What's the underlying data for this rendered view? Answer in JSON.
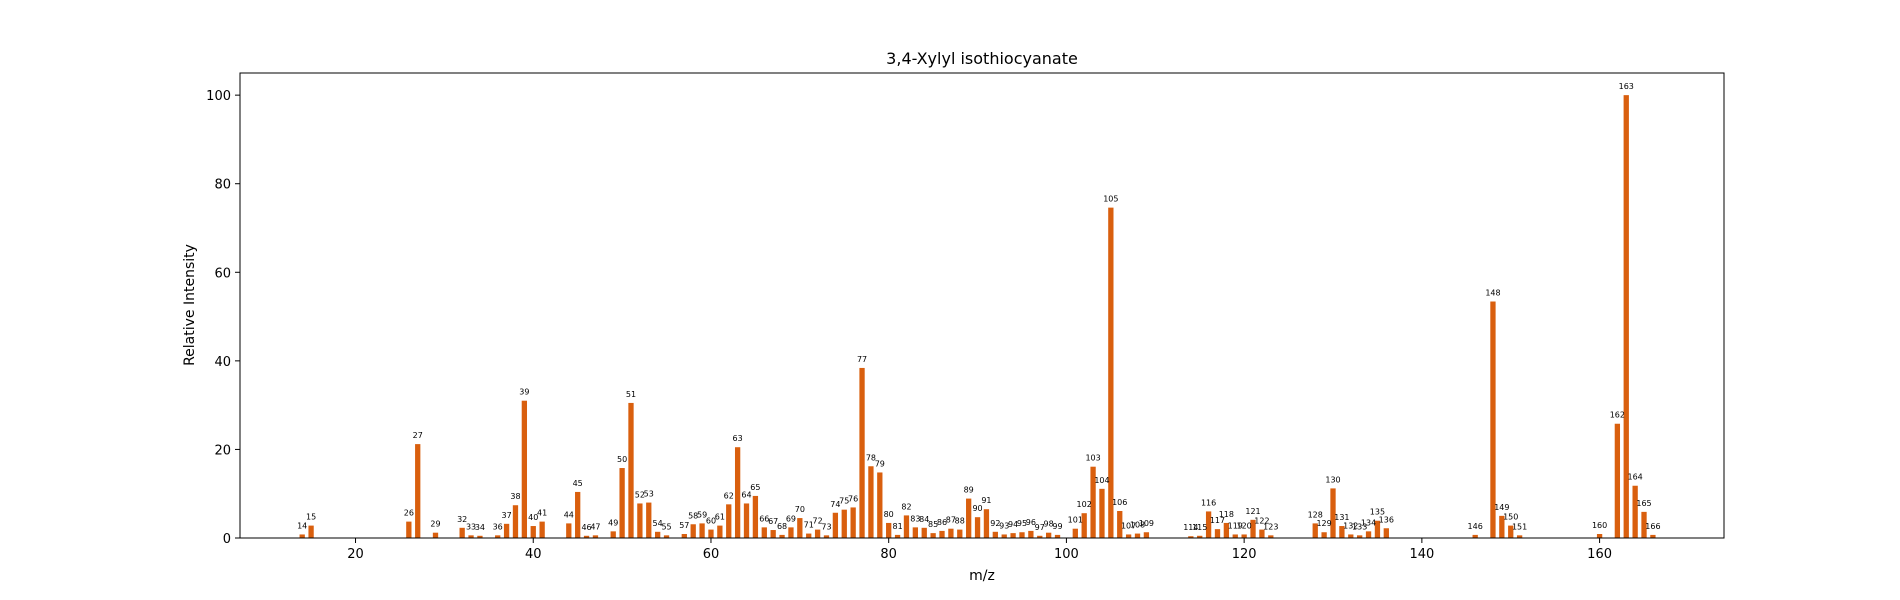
{
  "chart_data": {
    "type": "bar",
    "title": "3,4-Xylyl isothiocyanate",
    "xlabel": "m/z",
    "ylabel": "Relative Intensity",
    "xlim": [
      7,
      174
    ],
    "ylim": [
      0,
      105
    ],
    "x_ticks": [
      20,
      40,
      60,
      80,
      100,
      120,
      140,
      160
    ],
    "y_ticks": [
      0,
      20,
      40,
      60,
      80,
      100
    ],
    "bar_color": "#d95f0e",
    "grid": false,
    "x": [
      14,
      15,
      26,
      27,
      29,
      32,
      33,
      34,
      36,
      37,
      38,
      39,
      40,
      41,
      44,
      45,
      46,
      47,
      49,
      50,
      51,
      52,
      53,
      54,
      55,
      57,
      58,
      59,
      60,
      61,
      62,
      63,
      64,
      65,
      66,
      67,
      68,
      69,
      70,
      71,
      72,
      73,
      74,
      75,
      76,
      77,
      78,
      79,
      80,
      81,
      82,
      83,
      84,
      85,
      86,
      87,
      88,
      89,
      90,
      91,
      92,
      93,
      94,
      95,
      96,
      97,
      98,
      99,
      101,
      102,
      103,
      104,
      105,
      106,
      107,
      108,
      109,
      114,
      115,
      116,
      117,
      118,
      119,
      120,
      121,
      122,
      123,
      128,
      129,
      130,
      131,
      132,
      133,
      134,
      135,
      136,
      146,
      148,
      149,
      150,
      151,
      160,
      162,
      163,
      164,
      165,
      166
    ],
    "values": [
      0.8,
      2.8,
      3.7,
      21.2,
      1.2,
      2.3,
      0.6,
      0.5,
      0.6,
      3.2,
      7.4,
      31.0,
      2.7,
      3.7,
      3.3,
      10.4,
      0.5,
      0.6,
      1.5,
      15.8,
      30.5,
      7.8,
      8.0,
      1.4,
      0.6,
      0.9,
      3.1,
      3.3,
      1.9,
      2.8,
      7.6,
      20.5,
      7.8,
      9.5,
      2.4,
      1.8,
      0.7,
      2.4,
      4.5,
      1.0,
      1.9,
      0.6,
      5.7,
      6.4,
      6.9,
      38.4,
      16.2,
      14.8,
      3.4,
      0.7,
      5.1,
      2.4,
      2.3,
      1.1,
      1.6,
      2.1,
      1.9,
      8.9,
      4.7,
      6.5,
      1.4,
      0.8,
      1.1,
      1.3,
      1.6,
      0.5,
      1.2,
      0.7,
      2.1,
      5.6,
      16.1,
      11.1,
      74.6,
      6.1,
      0.8,
      1.0,
      1.3,
      0.4,
      0.5,
      6.0,
      2.0,
      3.4,
      0.8,
      0.8,
      4.1,
      1.9,
      0.6,
      3.3,
      1.3,
      11.2,
      2.7,
      0.8,
      0.6,
      1.5,
      3.9,
      2.2,
      0.7,
      53.4,
      5.0,
      2.8,
      0.6,
      0.9,
      25.8,
      100.0,
      11.8,
      5.9,
      0.7
    ],
    "labels": [
      "14",
      "15",
      "26",
      "27",
      "29",
      "32",
      "33",
      "34",
      "36",
      "37",
      "38",
      "39",
      "40",
      "41",
      "44",
      "45",
      "46",
      "47",
      "49",
      "50",
      "51",
      "52",
      "53",
      "54",
      "55",
      "57",
      "58",
      "59",
      "60",
      "61",
      "62",
      "63",
      "64",
      "65",
      "66",
      "67",
      "68",
      "69",
      "70",
      "71",
      "72",
      "73",
      "74",
      "75",
      "76",
      "77",
      "78",
      "79",
      "80",
      "81",
      "82",
      "83",
      "84",
      "85",
      "86",
      "87",
      "88",
      "89",
      "90",
      "91",
      "92",
      "93",
      "94",
      "95",
      "96",
      "97",
      "98",
      "99",
      "101",
      "102",
      "103",
      "104",
      "105",
      "106",
      "107",
      "108",
      "109",
      "114",
      "115",
      "116",
      "117",
      "118",
      "119",
      "120",
      "121",
      "122",
      "123",
      "128",
      "129",
      "130",
      "131",
      "132",
      "133",
      "134",
      "135",
      "136",
      "146",
      "148",
      "149",
      "150",
      "151",
      "160",
      "162",
      "163",
      "164",
      "165",
      "166"
    ]
  }
}
